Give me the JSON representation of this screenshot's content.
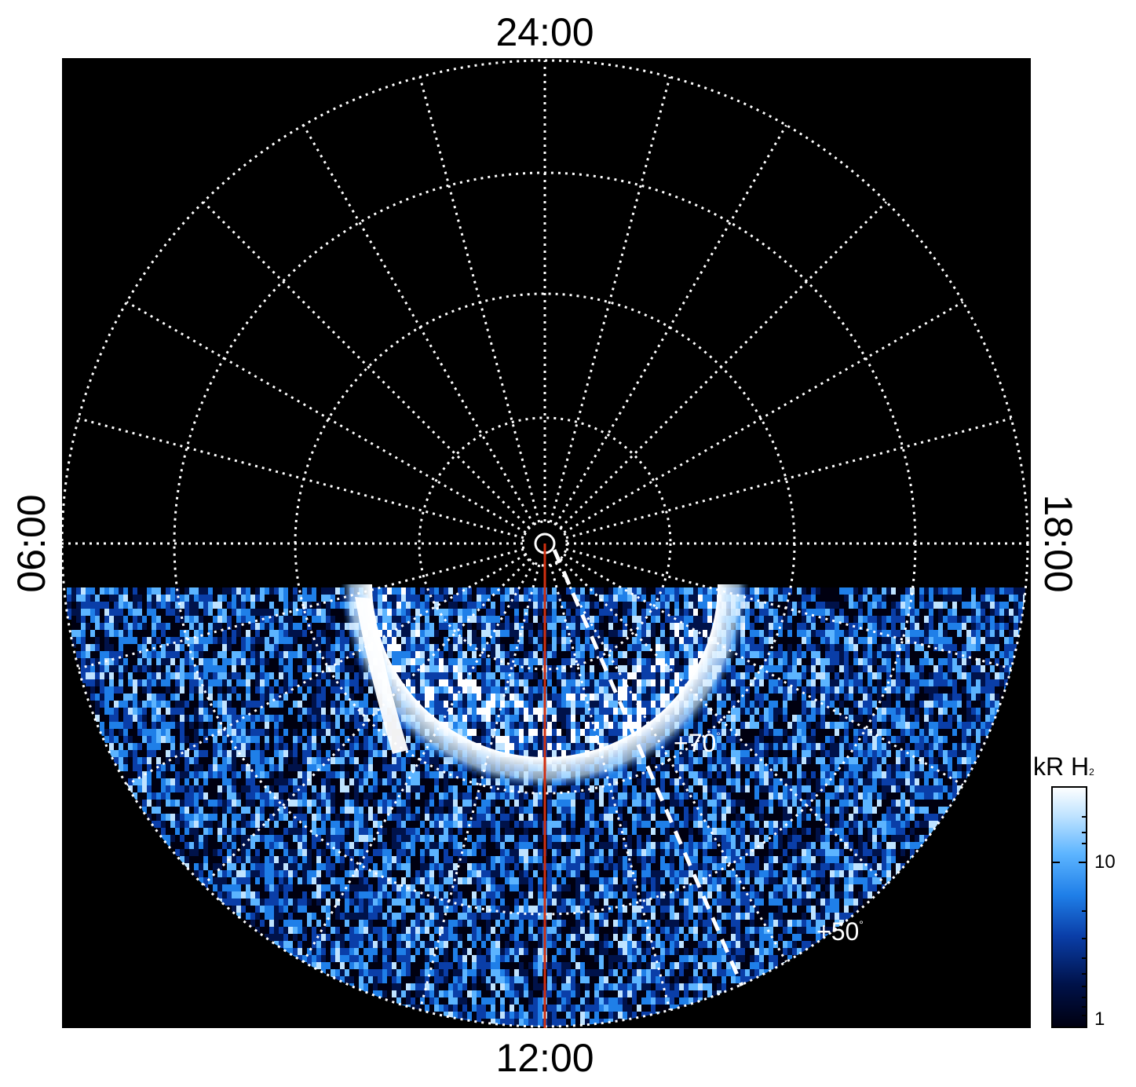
{
  "local_time_labels": {
    "top": "24:00",
    "bottom": "12:00",
    "left": "06:00",
    "right": "18:00"
  },
  "latitude_labels": {
    "lat70": "+70",
    "lat50": "+50",
    "degree_symbol": "°"
  },
  "colorbar": {
    "title": "kR H",
    "title_subscript": "2",
    "ticks": [
      "10",
      "1"
    ],
    "colors": [
      "#000010",
      "#00124a",
      "#0a3ea8",
      "#1f7fe8",
      "#5cb4ff",
      "#bfe3ff",
      "#ffffff"
    ]
  },
  "plot": {
    "background": "#000000",
    "grid_color": "#ffffff",
    "meridian_line_color": "#d03010"
  }
}
